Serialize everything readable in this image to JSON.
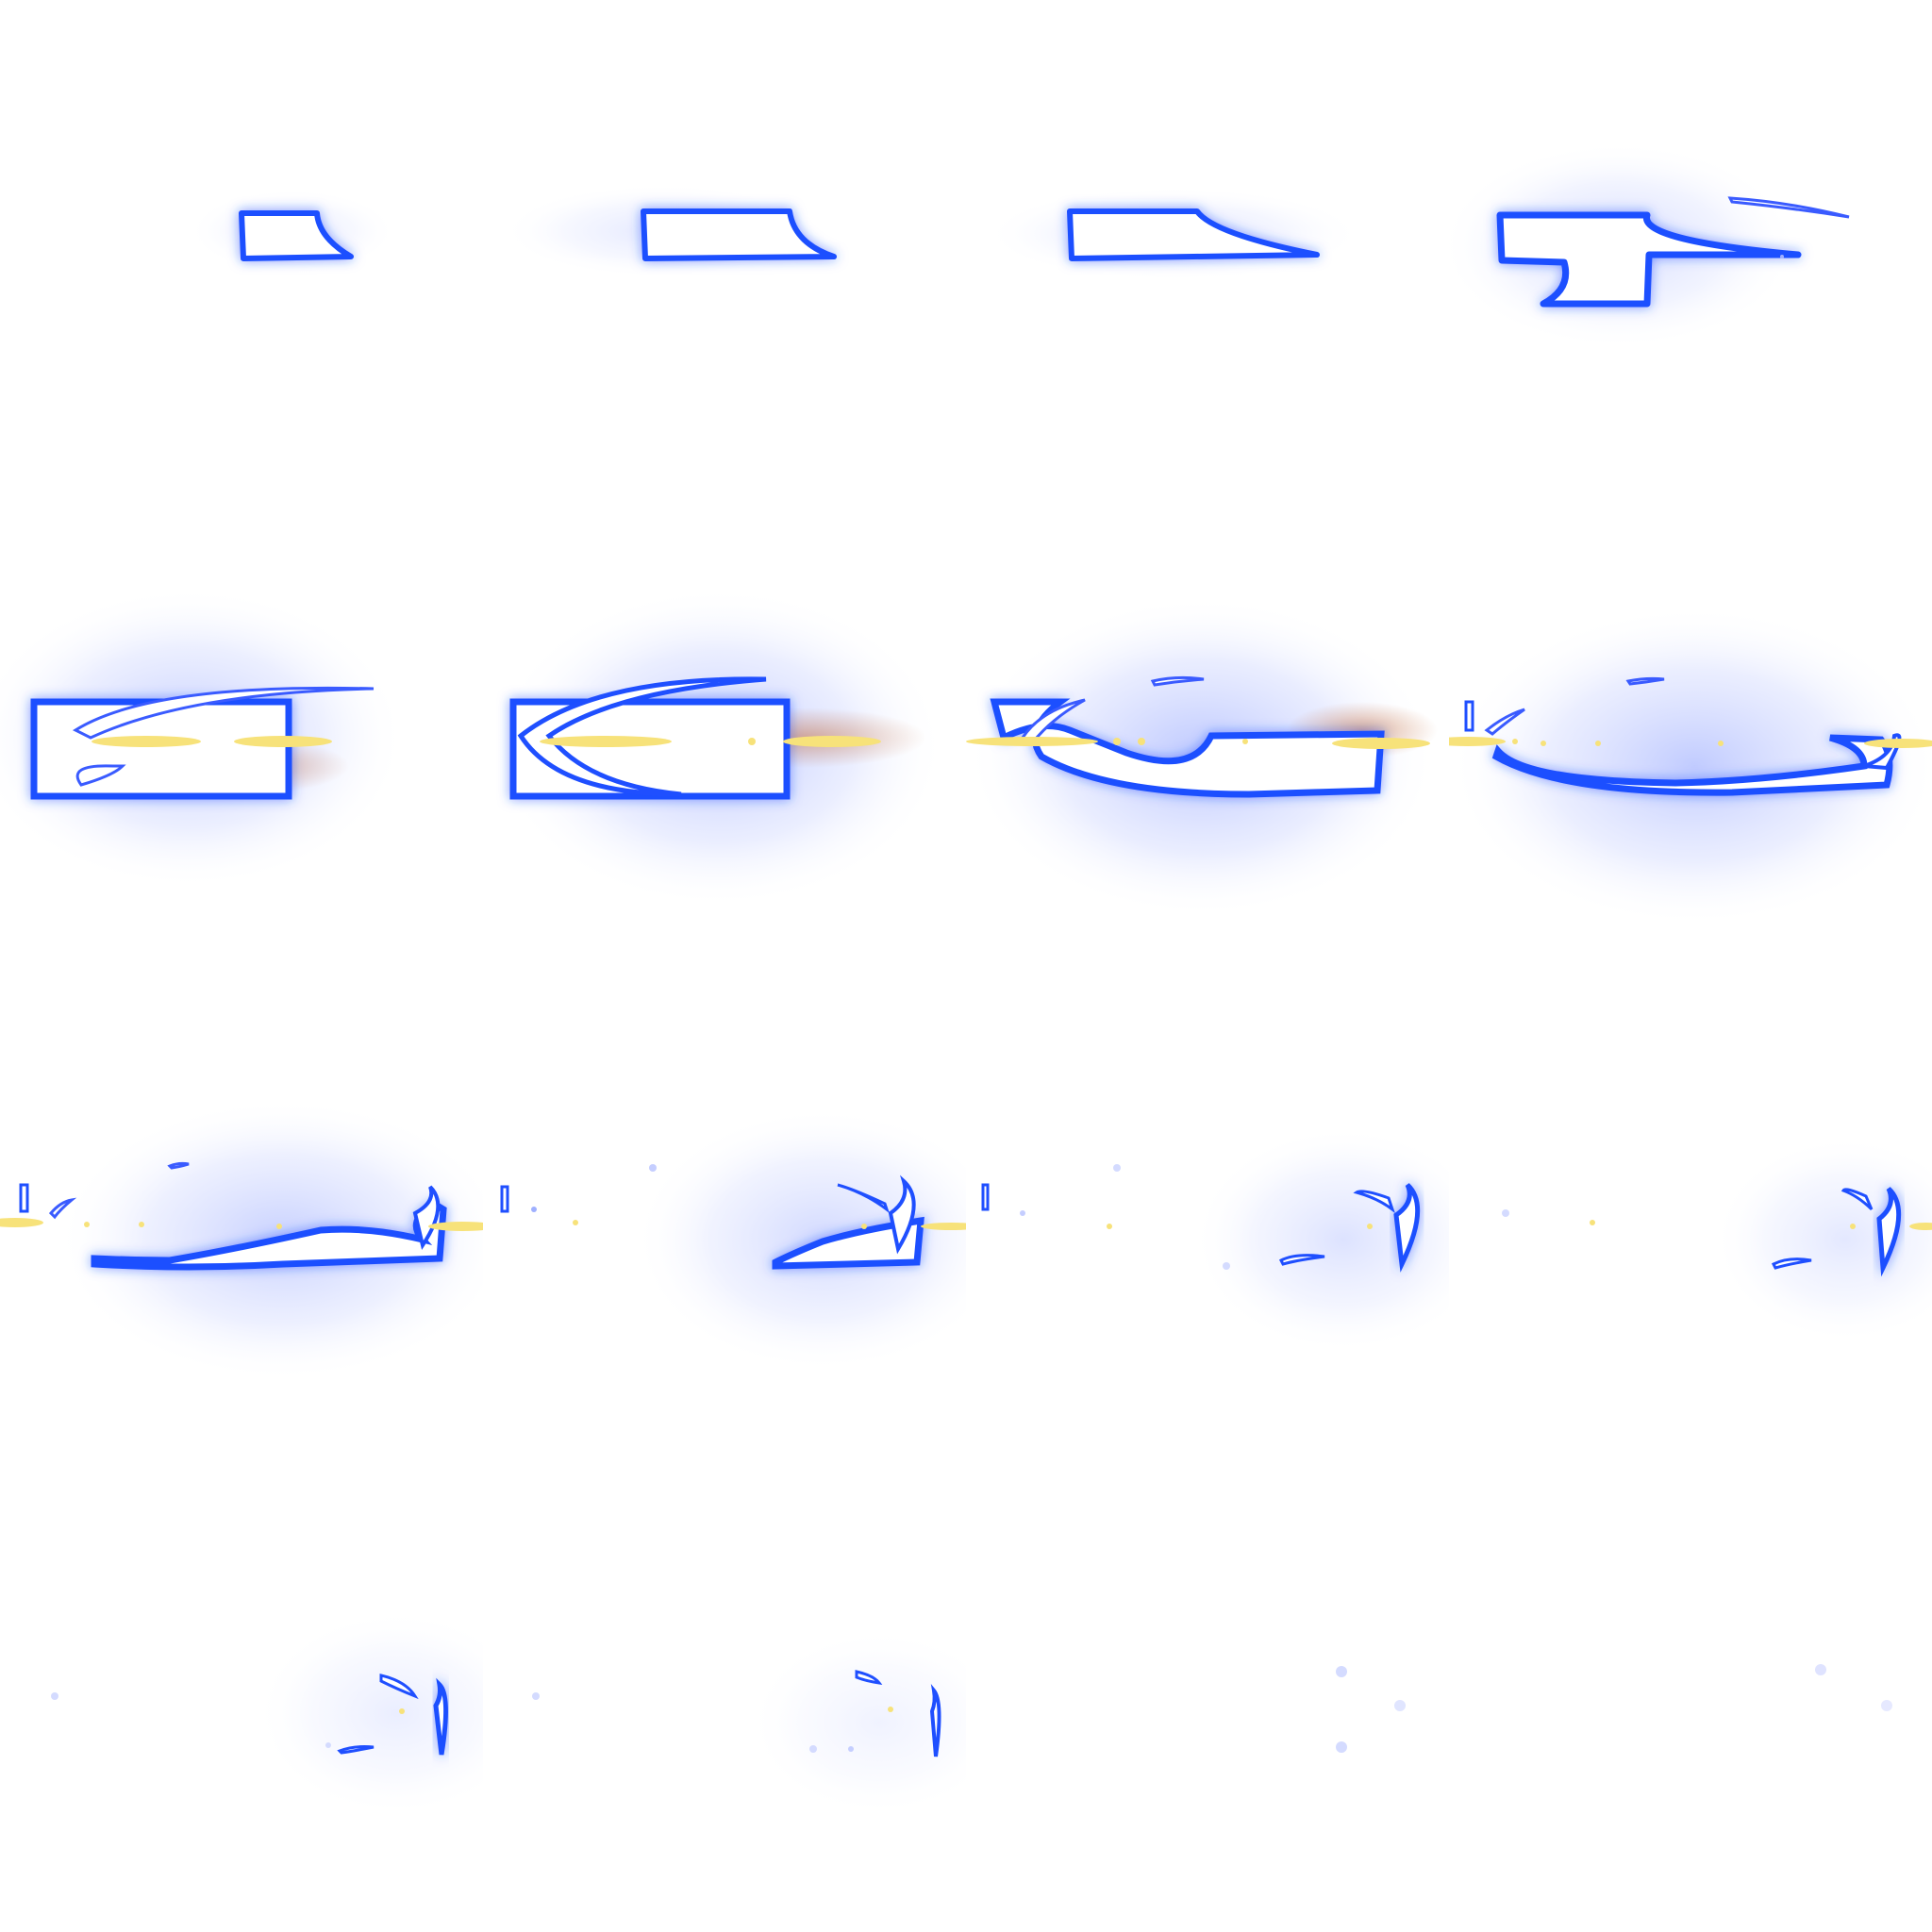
{
  "sheet": {
    "rows": 4,
    "columns": 4,
    "frame_count": 16,
    "colors": {
      "background": "#ffffff",
      "core": "#ffffff",
      "rim": "#1f4fff",
      "glow": "#3a5bff",
      "spark": "#f7e27a",
      "ember": "#c0622e"
    }
  },
  "frames": [
    {
      "index": 1,
      "phase": "blade-charge",
      "glow_level": 0.35
    },
    {
      "index": 2,
      "phase": "blade-charge",
      "glow_level": 0.4
    },
    {
      "index": 3,
      "phase": "blade-extend",
      "glow_level": 0.45
    },
    {
      "index": 4,
      "phase": "blade-extend",
      "glow_level": 0.6
    },
    {
      "index": 5,
      "phase": "slash-start",
      "glow_level": 0.85
    },
    {
      "index": 6,
      "phase": "slash-arc",
      "glow_level": 0.9
    },
    {
      "index": 7,
      "phase": "slash-arc",
      "glow_level": 0.95
    },
    {
      "index": 8,
      "phase": "slash-sweep",
      "glow_level": 0.9
    },
    {
      "index": 9,
      "phase": "slash-sweep",
      "glow_level": 0.8
    },
    {
      "index": 10,
      "phase": "dissipate",
      "glow_level": 0.65
    },
    {
      "index": 11,
      "phase": "dissipate",
      "glow_level": 0.5
    },
    {
      "index": 12,
      "phase": "dissipate",
      "glow_level": 0.4
    },
    {
      "index": 13,
      "phase": "fade",
      "glow_level": 0.3
    },
    {
      "index": 14,
      "phase": "fade",
      "glow_level": 0.22
    },
    {
      "index": 15,
      "phase": "fade",
      "glow_level": 0.12
    },
    {
      "index": 16,
      "phase": "fade",
      "glow_level": 0.08
    }
  ]
}
